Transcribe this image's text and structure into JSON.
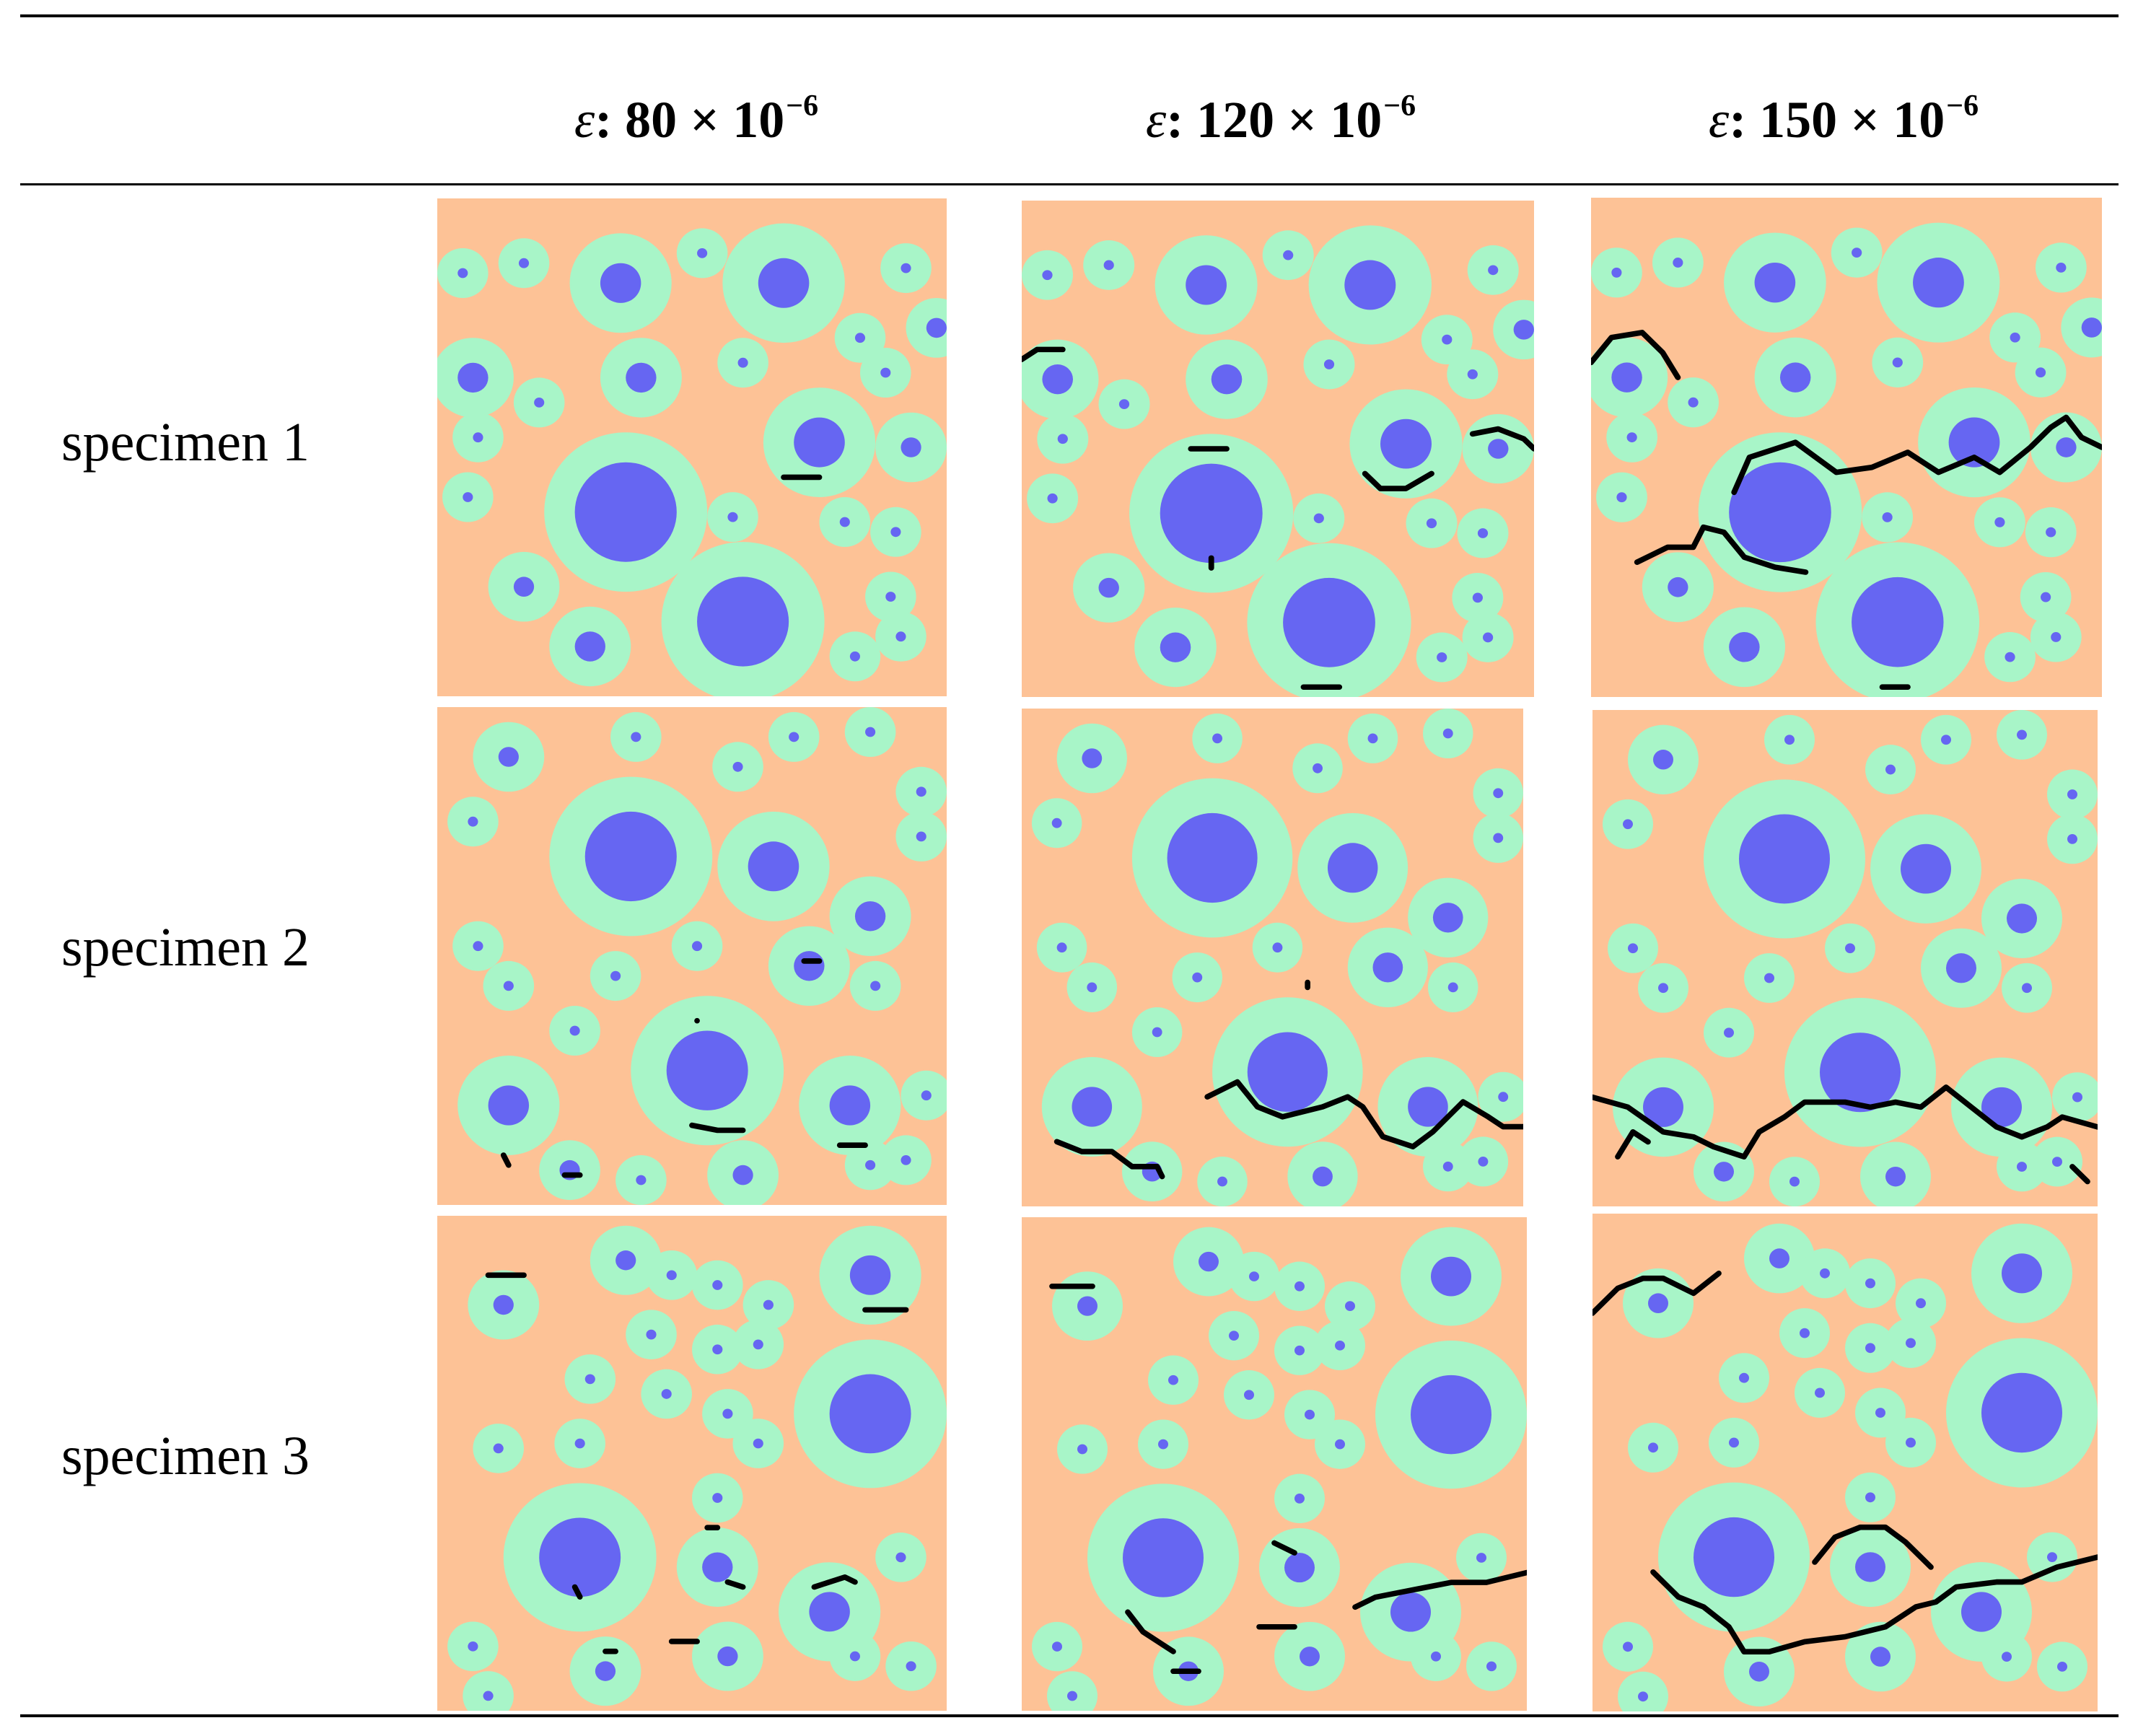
{
  "table": {
    "columns": [
      {
        "symbol": "ε",
        "value": ": 80 × 10",
        "exp": "−6"
      },
      {
        "symbol": "ε",
        "value": ": 120 × 10",
        "exp": "−6"
      },
      {
        "symbol": "ε",
        "value": ": 150 × 10",
        "exp": "−6"
      }
    ],
    "rows": [
      {
        "label": "specimen 1"
      },
      {
        "label": "specimen 2"
      },
      {
        "label": "specimen 3"
      }
    ]
  },
  "colors": {
    "matrix": "#fdc296",
    "itz": "#a8f5c8",
    "aggregate": "#6666f2",
    "crack": "#000000"
  }
}
